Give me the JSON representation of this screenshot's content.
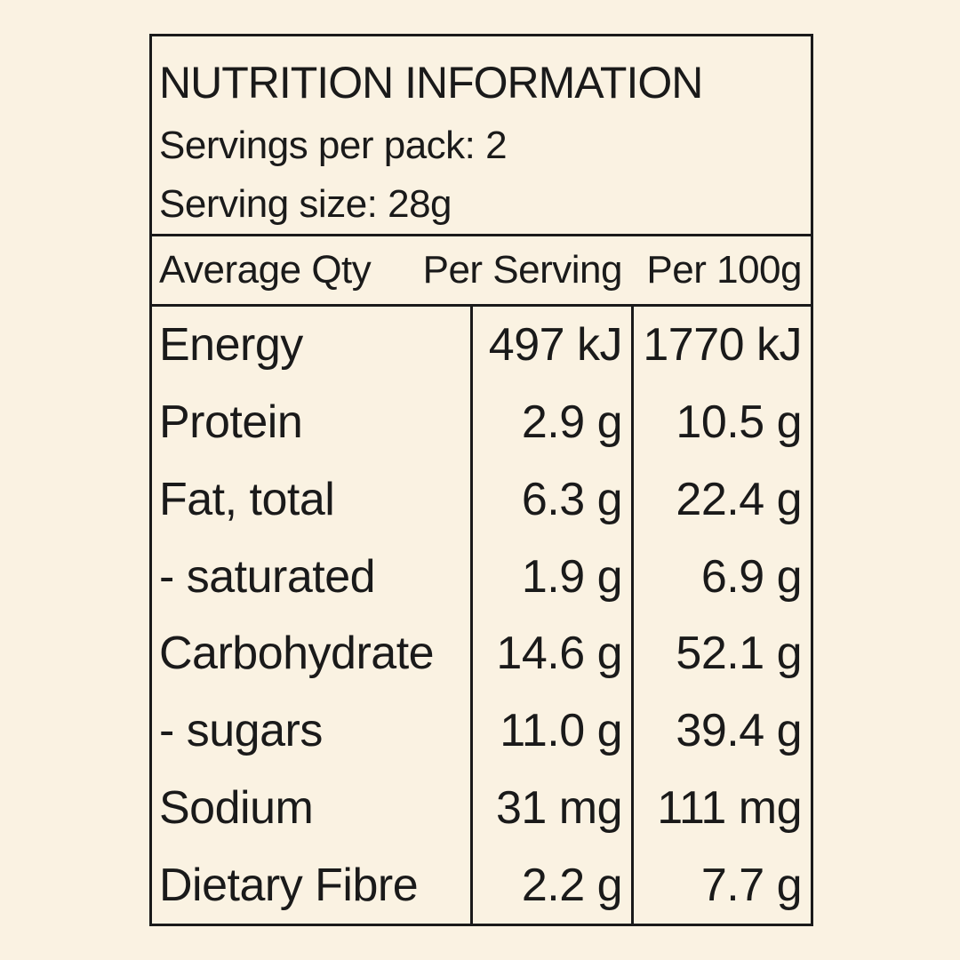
{
  "label": {
    "title": "NUTRITION INFORMATION",
    "servings_per_pack": "Servings per pack: 2",
    "serving_size": "Serving size: 28g"
  },
  "table": {
    "headers": [
      "Average Qty",
      "Per Serving",
      "Per 100g"
    ],
    "rows": [
      {
        "label": "Energy",
        "per_serving": "497 kJ",
        "per_100g": "1770 kJ"
      },
      {
        "label": "Protein",
        "per_serving": "2.9 g",
        "per_100g": "10.5 g"
      },
      {
        "label": "Fat, total",
        "per_serving": "6.3 g",
        "per_100g": "22.4 g"
      },
      {
        "label": "- saturated",
        "per_serving": "1.9 g",
        "per_100g": "6.9 g"
      },
      {
        "label": "Carbohydrate",
        "per_serving": "14.6 g",
        "per_100g": "52.1 g"
      },
      {
        "label": "- sugars",
        "per_serving": "11.0 g",
        "per_100g": "39.4 g"
      },
      {
        "label": "Sodium",
        "per_serving": "31 mg",
        "per_100g": "111 mg"
      },
      {
        "label": "Dietary Fibre",
        "per_serving": "2.2 g",
        "per_100g": "7.7 g"
      }
    ]
  },
  "colors": {
    "background": "#FAF2E2",
    "text": "#1A1A1A",
    "border": "#1A1A1A"
  }
}
